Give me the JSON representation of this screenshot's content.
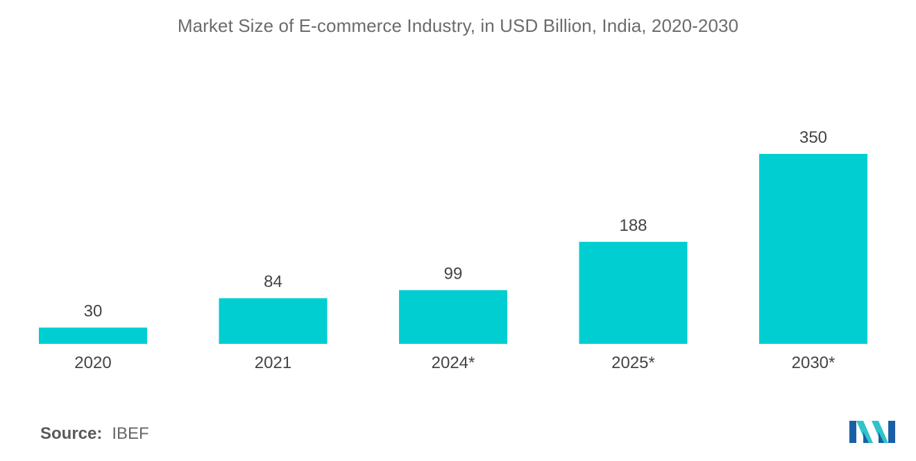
{
  "chart_data": {
    "type": "bar",
    "title": "Market Size of E-commerce Industry, in USD Billion, India, 2020-2030",
    "categories": [
      "2020",
      "2021",
      "2024*",
      "2025*",
      "2030*"
    ],
    "values": [
      30,
      84,
      99,
      188,
      350
    ],
    "xlabel": "",
    "ylabel": "",
    "ylim": [
      0,
      350
    ],
    "grid": false,
    "legend": "none",
    "bar_color": "#00CED1"
  },
  "source": {
    "label": "Source:",
    "value": "IBEF"
  },
  "logo": {
    "icon": "mordor-intelligence-logo",
    "colors": [
      "#1a5fa6",
      "#2ec4c9"
    ]
  }
}
